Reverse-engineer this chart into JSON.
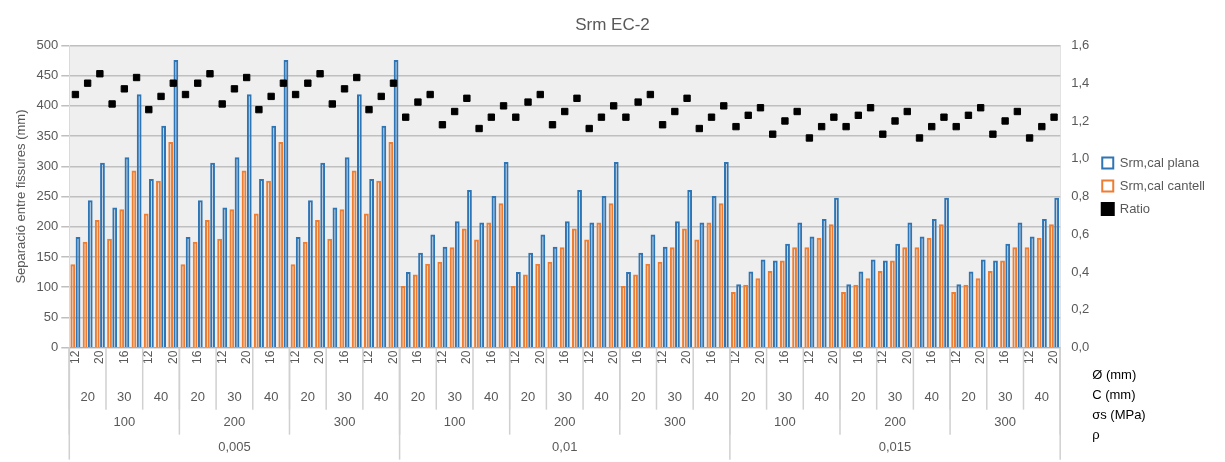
{
  "chart_data": {
    "type": "bar",
    "title": "Srm EC-2",
    "ylabel": "Separació entre fissures (mm)",
    "categories": [
      "12",
      null,
      "20",
      null,
      "16",
      null,
      "12",
      null,
      "20",
      null,
      "16",
      null,
      "12",
      null,
      "20",
      null,
      "16",
      null,
      "12",
      null,
      "20",
      null,
      "16",
      null,
      "12",
      null,
      "20",
      null,
      "16",
      null,
      "12",
      null,
      "20",
      null,
      "16",
      null,
      "12",
      null,
      "20",
      null,
      "16",
      null,
      "12",
      null,
      "20",
      null,
      "16",
      null,
      "12",
      null,
      "20",
      null,
      "16",
      null,
      "12",
      null,
      "20",
      null,
      "16",
      null,
      "12",
      null,
      "20",
      null,
      "16",
      null,
      "12",
      null,
      "20",
      null,
      "16",
      null,
      "12",
      null,
      "20",
      null,
      "16",
      null,
      "12",
      null,
      "20"
    ],
    "series": [
      {
        "name": "Srm,cal plana",
        "color": "#2e75b6",
        "values": [
          183,
          244,
          306,
          232,
          315,
          419,
          279,
          367,
          476,
          183,
          244,
          306,
          232,
          315,
          419,
          279,
          367,
          476,
          183,
          244,
          306,
          232,
          315,
          419,
          279,
          367,
          476,
          125,
          157,
          187,
          167,
          209,
          261,
          207,
          251,
          307,
          125,
          157,
          187,
          167,
          209,
          261,
          207,
          251,
          307,
          125,
          157,
          187,
          167,
          209,
          261,
          207,
          251,
          307,
          105,
          126,
          146,
          144,
          172,
          207,
          184,
          213,
          248,
          105,
          126,
          146,
          144,
          172,
          207,
          184,
          213,
          248,
          105,
          126,
          146,
          144,
          172,
          207,
          184,
          213,
          248
        ]
      },
      {
        "name": "Srm,cal cantell",
        "color": "#ed7d31",
        "values": [
          138,
          175,
          211,
          180,
          229,
          293,
          222,
          276,
          340,
          138,
          175,
          211,
          180,
          229,
          293,
          222,
          276,
          340,
          138,
          175,
          211,
          180,
          229,
          293,
          222,
          276,
          340,
          102,
          121,
          139,
          142,
          166,
          197,
          179,
          207,
          239,
          102,
          121,
          139,
          142,
          166,
          197,
          179,
          207,
          239,
          102,
          121,
          139,
          142,
          166,
          197,
          179,
          207,
          239,
          92,
          104,
          115,
          127,
          144,
          166,
          166,
          182,
          204,
          92,
          104,
          115,
          127,
          144,
          166,
          166,
          182,
          204,
          92,
          104,
          115,
          127,
          144,
          166,
          166,
          182,
          204
        ]
      },
      {
        "name": "Ratio",
        "type": "scatter",
        "axis": "y2",
        "color": "#000000",
        "values": [
          1.34,
          1.4,
          1.45,
          1.29,
          1.37,
          1.43,
          1.26,
          1.33,
          1.4,
          1.34,
          1.4,
          1.45,
          1.29,
          1.37,
          1.43,
          1.26,
          1.33,
          1.4,
          1.34,
          1.4,
          1.45,
          1.29,
          1.37,
          1.43,
          1.26,
          1.33,
          1.4,
          1.22,
          1.3,
          1.34,
          1.18,
          1.25,
          1.32,
          1.16,
          1.22,
          1.28,
          1.22,
          1.3,
          1.34,
          1.18,
          1.25,
          1.32,
          1.16,
          1.22,
          1.28,
          1.22,
          1.3,
          1.34,
          1.18,
          1.25,
          1.32,
          1.16,
          1.22,
          1.28,
          1.17,
          1.23,
          1.27,
          1.13,
          1.2,
          1.25,
          1.11,
          1.17,
          1.22,
          1.17,
          1.23,
          1.27,
          1.13,
          1.2,
          1.25,
          1.11,
          1.17,
          1.22,
          1.17,
          1.23,
          1.27,
          1.13,
          1.2,
          1.25,
          1.11,
          1.17,
          1.22
        ]
      }
    ],
    "ylim": [
      0,
      500
    ],
    "yticks": [
      0,
      50,
      100,
      150,
      200,
      250,
      300,
      350,
      400,
      450,
      500
    ],
    "y2lim": [
      0,
      1.6
    ],
    "y2ticks": [
      {
        "value": 0,
        "label": "0,0"
      },
      {
        "value": 0.2,
        "label": "0,2"
      },
      {
        "value": 0.4,
        "label": "0,4"
      },
      {
        "value": 0.6,
        "label": "0,6"
      },
      {
        "value": 0.8,
        "label": "0,8"
      },
      {
        "value": 1.0,
        "label": "1,0"
      },
      {
        "value": 1.2,
        "label": "1,2"
      },
      {
        "value": 1.4,
        "label": "1,4"
      },
      {
        "value": 1.6,
        "label": "1,6"
      }
    ],
    "grid": "y",
    "legend": "right",
    "marker": "square",
    "annotations": [
      "Ø (mm)",
      "C (mm)",
      "σs (MPa)",
      "ρ",
      "20",
      "30",
      "40",
      "20",
      "30",
      "40",
      "20",
      "30",
      "40",
      "20",
      "30",
      "40",
      "20",
      "30",
      "40",
      "20",
      "30",
      "40",
      "20",
      "30",
      "40",
      "20",
      "30",
      "40",
      "20",
      "30",
      "40",
      "100",
      "200",
      "300",
      "100",
      "200",
      "300",
      "100",
      "200",
      "300",
      "0,005",
      "0,01",
      "0,015"
    ]
  }
}
